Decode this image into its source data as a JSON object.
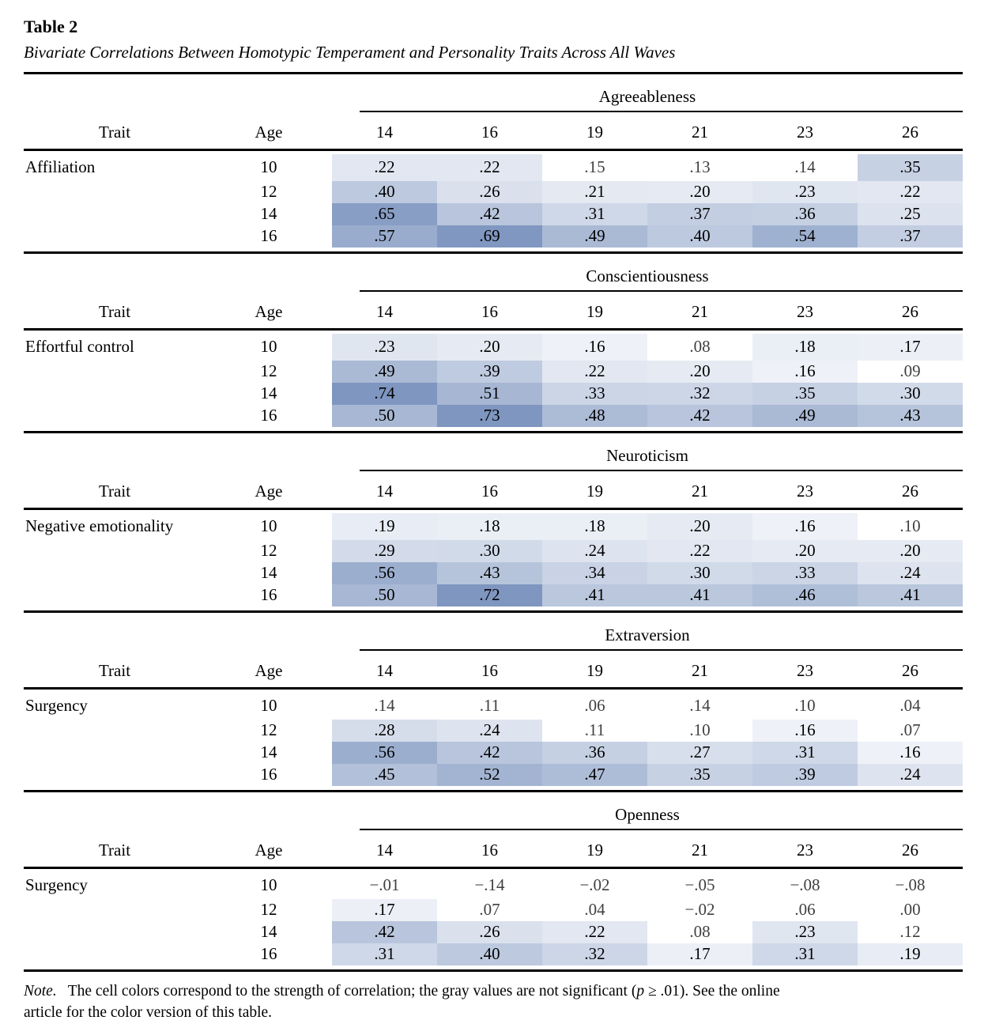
{
  "title": "Table 2",
  "subtitle": "Bivariate Correlations Between Homotypic Temperament and Personality Traits Across All Waves",
  "columns": {
    "trait": "Trait",
    "age": "Age",
    "waves": [
      "14",
      "16",
      "19",
      "21",
      "23",
      "26"
    ]
  },
  "palette": {
    "cell_base": "#7e96c0",
    "cell_white": "#ffffff",
    "text": "#000000",
    "ns_text": "#3f3f3f",
    "shade_min": 0.08,
    "shade_span": 0.62
  },
  "chart_data": {
    "type": "heatmap",
    "title": "Bivariate Correlations Between Homotypic Temperament and Personality Traits Across All Waves",
    "columns": [
      "14",
      "16",
      "19",
      "21",
      "23",
      "26"
    ],
    "row_ages": [
      "10",
      "12",
      "14",
      "16"
    ],
    "legend": "cell shading intensity encodes correlation strength; white cells / gray values not significant"
  },
  "sections": [
    {
      "group": "Agreeableness",
      "trait": "Affiliation",
      "rows": [
        {
          "age": "10",
          "cells": [
            {
              "v": ".22"
            },
            {
              "v": ".22"
            },
            {
              "v": ".15",
              "ns": true
            },
            {
              "v": ".13",
              "ns": true
            },
            {
              "v": ".14",
              "ns": true
            },
            {
              "v": ".35"
            }
          ]
        },
        {
          "age": "12",
          "cells": [
            {
              "v": ".40"
            },
            {
              "v": ".26"
            },
            {
              "v": ".21"
            },
            {
              "v": ".20"
            },
            {
              "v": ".23"
            },
            {
              "v": ".22"
            }
          ]
        },
        {
          "age": "14",
          "cells": [
            {
              "v": ".65"
            },
            {
              "v": ".42"
            },
            {
              "v": ".31"
            },
            {
              "v": ".37"
            },
            {
              "v": ".36"
            },
            {
              "v": ".25"
            }
          ]
        },
        {
          "age": "16",
          "cells": [
            {
              "v": ".57"
            },
            {
              "v": ".69"
            },
            {
              "v": ".49"
            },
            {
              "v": ".40"
            },
            {
              "v": ".54"
            },
            {
              "v": ".37"
            }
          ]
        }
      ]
    },
    {
      "group": "Conscientiousness",
      "trait": "Effortful control",
      "rows": [
        {
          "age": "10",
          "cells": [
            {
              "v": ".23"
            },
            {
              "v": ".20"
            },
            {
              "v": ".16"
            },
            {
              "v": ".08",
              "ns": true
            },
            {
              "v": ".18"
            },
            {
              "v": ".17"
            }
          ]
        },
        {
          "age": "12",
          "cells": [
            {
              "v": ".49"
            },
            {
              "v": ".39"
            },
            {
              "v": ".22"
            },
            {
              "v": ".20"
            },
            {
              "v": ".16"
            },
            {
              "v": ".09",
              "ns": true
            }
          ]
        },
        {
          "age": "14",
          "cells": [
            {
              "v": ".74"
            },
            {
              "v": ".51"
            },
            {
              "v": ".33"
            },
            {
              "v": ".32"
            },
            {
              "v": ".35"
            },
            {
              "v": ".30"
            }
          ]
        },
        {
          "age": "16",
          "cells": [
            {
              "v": ".50"
            },
            {
              "v": ".73"
            },
            {
              "v": ".48"
            },
            {
              "v": ".42"
            },
            {
              "v": ".49"
            },
            {
              "v": ".43"
            }
          ]
        }
      ]
    },
    {
      "group": "Neuroticism",
      "trait": "Negative emotionality",
      "rows": [
        {
          "age": "10",
          "cells": [
            {
              "v": ".19"
            },
            {
              "v": ".18"
            },
            {
              "v": ".18"
            },
            {
              "v": ".20"
            },
            {
              "v": ".16"
            },
            {
              "v": ".10",
              "ns": true
            }
          ]
        },
        {
          "age": "12",
          "cells": [
            {
              "v": ".29"
            },
            {
              "v": ".30"
            },
            {
              "v": ".24"
            },
            {
              "v": ".22"
            },
            {
              "v": ".20"
            },
            {
              "v": ".20"
            }
          ]
        },
        {
          "age": "14",
          "cells": [
            {
              "v": ".56"
            },
            {
              "v": ".43"
            },
            {
              "v": ".34"
            },
            {
              "v": ".30"
            },
            {
              "v": ".33"
            },
            {
              "v": ".24"
            }
          ]
        },
        {
          "age": "16",
          "cells": [
            {
              "v": ".50"
            },
            {
              "v": ".72"
            },
            {
              "v": ".41"
            },
            {
              "v": ".41"
            },
            {
              "v": ".46"
            },
            {
              "v": ".41"
            }
          ]
        }
      ]
    },
    {
      "group": "Extraversion",
      "trait": "Surgency",
      "rows": [
        {
          "age": "10",
          "cells": [
            {
              "v": ".14",
              "ns": true
            },
            {
              "v": ".11",
              "ns": true
            },
            {
              "v": ".06",
              "ns": true
            },
            {
              "v": ".14",
              "ns": true
            },
            {
              "v": ".10",
              "ns": true
            },
            {
              "v": ".04",
              "ns": true
            }
          ]
        },
        {
          "age": "12",
          "cells": [
            {
              "v": ".28"
            },
            {
              "v": ".24"
            },
            {
              "v": ".11",
              "ns": true
            },
            {
              "v": ".10",
              "ns": true
            },
            {
              "v": ".16"
            },
            {
              "v": ".07",
              "ns": true
            }
          ]
        },
        {
          "age": "14",
          "cells": [
            {
              "v": ".56"
            },
            {
              "v": ".42"
            },
            {
              "v": ".36"
            },
            {
              "v": ".27"
            },
            {
              "v": ".31"
            },
            {
              "v": ".16"
            }
          ]
        },
        {
          "age": "16",
          "cells": [
            {
              "v": ".45"
            },
            {
              "v": ".52"
            },
            {
              "v": ".47"
            },
            {
              "v": ".35"
            },
            {
              "v": ".39"
            },
            {
              "v": ".24"
            }
          ]
        }
      ]
    },
    {
      "group": "Openness",
      "trait": "Surgency",
      "rows": [
        {
          "age": "10",
          "cells": [
            {
              "v": "−.01",
              "ns": true
            },
            {
              "v": "−.14",
              "ns": true
            },
            {
              "v": "−.02",
              "ns": true
            },
            {
              "v": "−.05",
              "ns": true
            },
            {
              "v": "−.08",
              "ns": true
            },
            {
              "v": "−.08",
              "ns": true
            }
          ]
        },
        {
          "age": "12",
          "cells": [
            {
              "v": ".17"
            },
            {
              "v": ".07",
              "ns": true
            },
            {
              "v": ".04",
              "ns": true
            },
            {
              "v": "−.02",
              "ns": true
            },
            {
              "v": ".06",
              "ns": true
            },
            {
              "v": ".00",
              "ns": true
            }
          ]
        },
        {
          "age": "14",
          "cells": [
            {
              "v": ".42"
            },
            {
              "v": ".26"
            },
            {
              "v": ".22"
            },
            {
              "v": ".08",
              "ns": true
            },
            {
              "v": ".23"
            },
            {
              "v": ".12",
              "ns": true
            }
          ]
        },
        {
          "age": "16",
          "cells": [
            {
              "v": ".31"
            },
            {
              "v": ".40"
            },
            {
              "v": ".32"
            },
            {
              "v": ".17"
            },
            {
              "v": ".31"
            },
            {
              "v": ".19"
            }
          ]
        }
      ]
    }
  ],
  "note": {
    "label": "Note.",
    "seg1": "The cell colors correspond to the strength of correlation; the gray values are not significant (",
    "p": "p",
    "seg2": " ≥ .01). See the online",
    "line2": "article for the color version of this table."
  }
}
